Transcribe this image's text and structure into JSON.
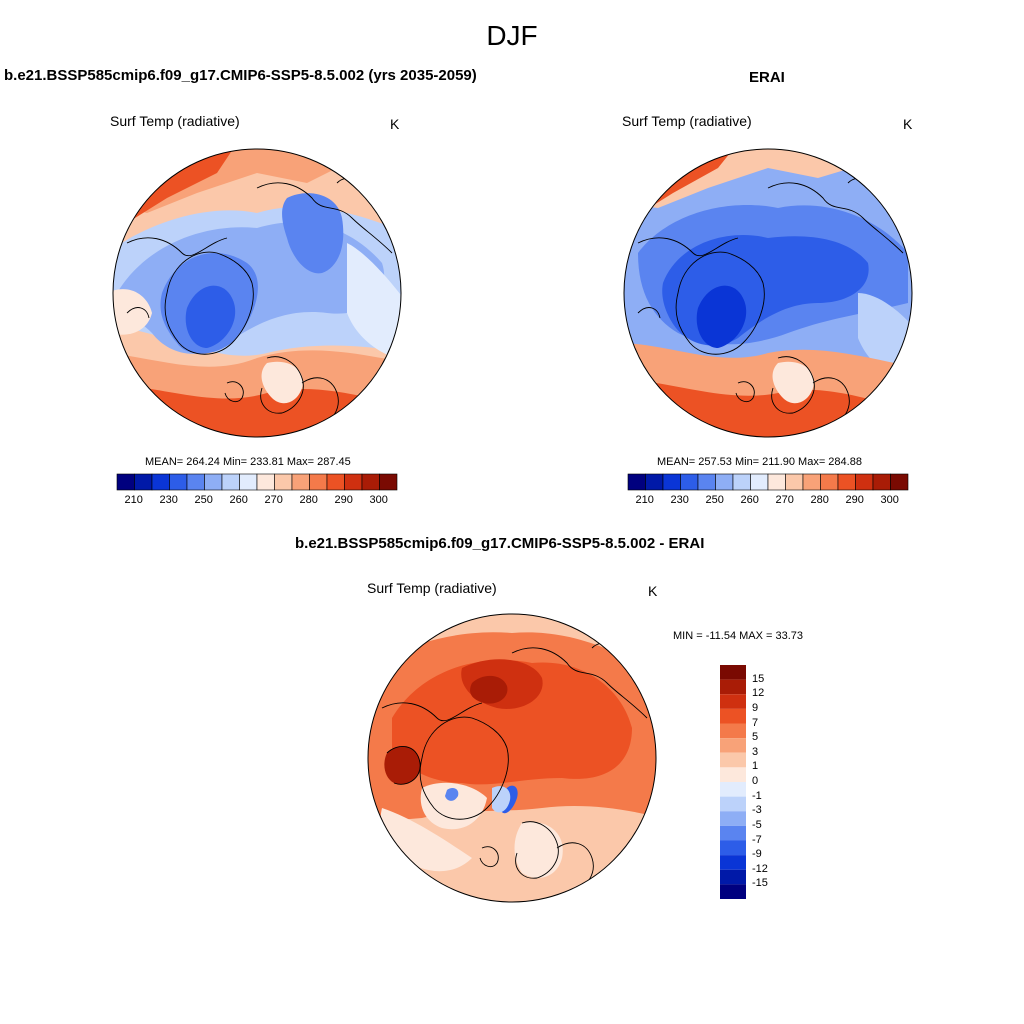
{
  "figure": {
    "title": "DJF"
  },
  "panels": [
    {
      "title": "b.e21.BSSP585cmip6.f09_g17.CMIP6-SSP5-8.5.002 (yrs 2035-2059)",
      "variable": "Surf Temp (radiative)",
      "units": "K",
      "stats": {
        "mean": "264.24",
        "min": "233.81",
        "max": "287.45",
        "text": "MEAN= 264.24  Min= 233.81  Max= 287.45"
      }
    },
    {
      "title": "ERAI",
      "variable": "Surf Temp (radiative)",
      "units": "K",
      "stats": {
        "mean": "257.53",
        "min": "211.90",
        "max": "284.88",
        "text": "MEAN= 257.53  Min= 211.90  Max= 284.88"
      }
    },
    {
      "title": "b.e21.BSSP585cmip6.f09_g17.CMIP6-SSP5-8.5.002 - ERAI",
      "variable": "Surf Temp (radiative)",
      "units": "K",
      "stats": {
        "min": "-11.54",
        "max": "33.73",
        "text": "MIN = -11.54 MAX =  33.73"
      }
    }
  ],
  "colorbar_abs": {
    "colors": [
      "#00007f",
      "#0019a8",
      "#0a35d6",
      "#2d5de8",
      "#5a84f0",
      "#8eaef5",
      "#bcd2fa",
      "#e2ecfd",
      "#fde8dc",
      "#fbc8aa",
      "#f8a278",
      "#f47a4a",
      "#ec5224",
      "#cf3010",
      "#a91c06",
      "#7a0a02"
    ],
    "tick_labels": [
      "210",
      "230",
      "250",
      "260",
      "270",
      "280",
      "290",
      "300"
    ]
  },
  "colorbar_diff": {
    "colors": [
      "#00007f",
      "#0019a8",
      "#0a35d6",
      "#2d5de8",
      "#5a84f0",
      "#8eaef5",
      "#bcd2fa",
      "#e2ecfd",
      "#fde8dc",
      "#fbc8aa",
      "#f8a278",
      "#f47a4a",
      "#ec5224",
      "#cf3010",
      "#a91c06",
      "#7a0a02"
    ],
    "tick_labels": [
      "-15",
      "-12",
      "-9",
      "-7",
      "-5",
      "-3",
      "-1",
      "0",
      "1",
      "3",
      "5",
      "7",
      "9",
      "12",
      "15"
    ]
  },
  "colors": {
    "cold_core": "#3660e6",
    "cool": "#7ea3f2",
    "pale_cool": "#d3e3fb",
    "warm": "#f79a6e",
    "hot": "#e85a2c",
    "very_hot": "#b52208"
  }
}
